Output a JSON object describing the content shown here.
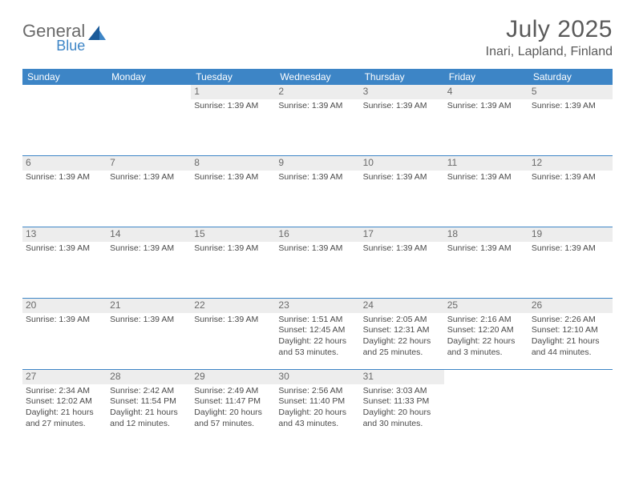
{
  "brand": {
    "word1": "General",
    "word2": "Blue"
  },
  "title": {
    "month": "July 2025",
    "location": "Inari, Lapland, Finland"
  },
  "colors": {
    "header_bg": "#3d85c6",
    "header_fg": "#ffffff",
    "daynum_bg": "#ededed",
    "rule": "#3d85c6",
    "text": "#4a4a4a",
    "title_text": "#5a5a5a",
    "logo_gray": "#6a6a6a",
    "logo_blue": "#3d85c6"
  },
  "dow": [
    "Sunday",
    "Monday",
    "Tuesday",
    "Wednesday",
    "Thursday",
    "Friday",
    "Saturday"
  ],
  "weeks": [
    [
      {
        "n": "",
        "lines": []
      },
      {
        "n": "",
        "lines": []
      },
      {
        "n": "1",
        "lines": [
          "Sunrise: 1:39 AM"
        ]
      },
      {
        "n": "2",
        "lines": [
          "Sunrise: 1:39 AM"
        ]
      },
      {
        "n": "3",
        "lines": [
          "Sunrise: 1:39 AM"
        ]
      },
      {
        "n": "4",
        "lines": [
          "Sunrise: 1:39 AM"
        ]
      },
      {
        "n": "5",
        "lines": [
          "Sunrise: 1:39 AM"
        ]
      }
    ],
    [
      {
        "n": "6",
        "lines": [
          "Sunrise: 1:39 AM"
        ]
      },
      {
        "n": "7",
        "lines": [
          "Sunrise: 1:39 AM"
        ]
      },
      {
        "n": "8",
        "lines": [
          "Sunrise: 1:39 AM"
        ]
      },
      {
        "n": "9",
        "lines": [
          "Sunrise: 1:39 AM"
        ]
      },
      {
        "n": "10",
        "lines": [
          "Sunrise: 1:39 AM"
        ]
      },
      {
        "n": "11",
        "lines": [
          "Sunrise: 1:39 AM"
        ]
      },
      {
        "n": "12",
        "lines": [
          "Sunrise: 1:39 AM"
        ]
      }
    ],
    [
      {
        "n": "13",
        "lines": [
          "Sunrise: 1:39 AM"
        ]
      },
      {
        "n": "14",
        "lines": [
          "Sunrise: 1:39 AM"
        ]
      },
      {
        "n": "15",
        "lines": [
          "Sunrise: 1:39 AM"
        ]
      },
      {
        "n": "16",
        "lines": [
          "Sunrise: 1:39 AM"
        ]
      },
      {
        "n": "17",
        "lines": [
          "Sunrise: 1:39 AM"
        ]
      },
      {
        "n": "18",
        "lines": [
          "Sunrise: 1:39 AM"
        ]
      },
      {
        "n": "19",
        "lines": [
          "Sunrise: 1:39 AM"
        ]
      }
    ],
    [
      {
        "n": "20",
        "lines": [
          "Sunrise: 1:39 AM"
        ]
      },
      {
        "n": "21",
        "lines": [
          "Sunrise: 1:39 AM"
        ]
      },
      {
        "n": "22",
        "lines": [
          "Sunrise: 1:39 AM"
        ]
      },
      {
        "n": "23",
        "lines": [
          "Sunrise: 1:51 AM",
          "Sunset: 12:45 AM",
          "Daylight: 22 hours and 53 minutes."
        ]
      },
      {
        "n": "24",
        "lines": [
          "Sunrise: 2:05 AM",
          "Sunset: 12:31 AM",
          "Daylight: 22 hours and 25 minutes."
        ]
      },
      {
        "n": "25",
        "lines": [
          "Sunrise: 2:16 AM",
          "Sunset: 12:20 AM",
          "Daylight: 22 hours and 3 minutes."
        ]
      },
      {
        "n": "26",
        "lines": [
          "Sunrise: 2:26 AM",
          "Sunset: 12:10 AM",
          "Daylight: 21 hours and 44 minutes."
        ]
      }
    ],
    [
      {
        "n": "27",
        "lines": [
          "Sunrise: 2:34 AM",
          "Sunset: 12:02 AM",
          "Daylight: 21 hours and 27 minutes."
        ]
      },
      {
        "n": "28",
        "lines": [
          "Sunrise: 2:42 AM",
          "Sunset: 11:54 PM",
          "Daylight: 21 hours and 12 minutes."
        ]
      },
      {
        "n": "29",
        "lines": [
          "Sunrise: 2:49 AM",
          "Sunset: 11:47 PM",
          "Daylight: 20 hours and 57 minutes."
        ]
      },
      {
        "n": "30",
        "lines": [
          "Sunrise: 2:56 AM",
          "Sunset: 11:40 PM",
          "Daylight: 20 hours and 43 minutes."
        ]
      },
      {
        "n": "31",
        "lines": [
          "Sunrise: 3:03 AM",
          "Sunset: 11:33 PM",
          "Daylight: 20 hours and 30 minutes."
        ]
      },
      {
        "n": "",
        "lines": []
      },
      {
        "n": "",
        "lines": []
      }
    ]
  ]
}
